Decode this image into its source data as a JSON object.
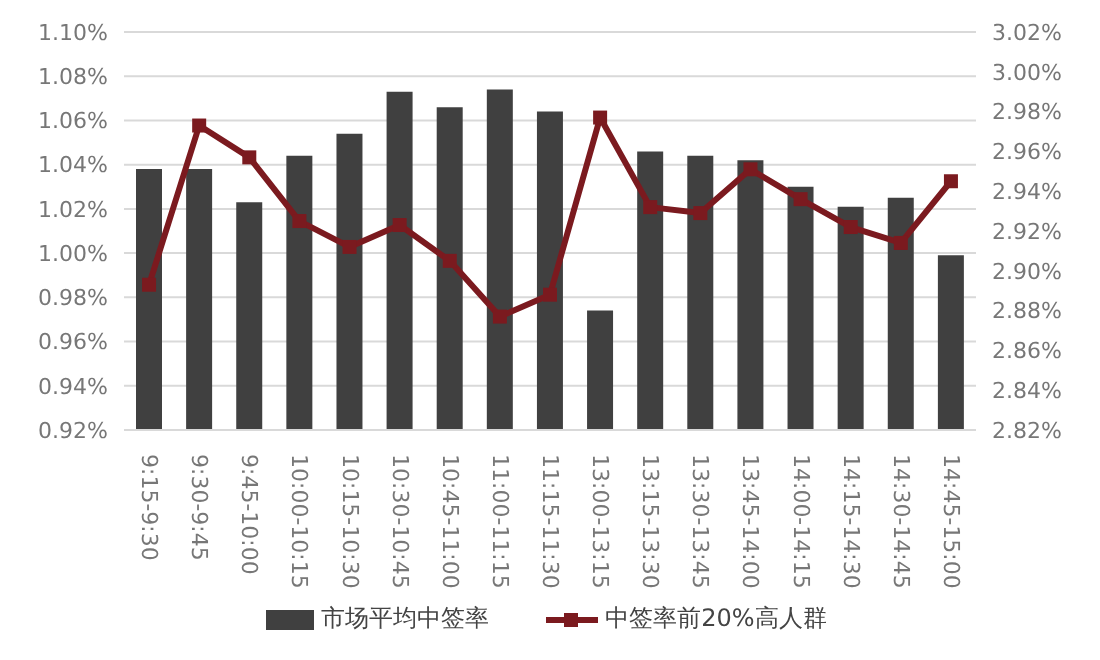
{
  "chart_data": {
    "type": "bar",
    "categories": [
      "9:15-9:30",
      "9:30-9:45",
      "9:45-10:00",
      "10:00-10:15",
      "10:15-10:30",
      "10:30-10:45",
      "10:45-11:00",
      "11:00-11:15",
      "11:15-11:30",
      "13:00-13:15",
      "13:15-13:30",
      "13:30-13:45",
      "13:45-14:00",
      "14:00-14:15",
      "14:15-14:30",
      "14:30-14:45",
      "14:45-15:00"
    ],
    "series": [
      {
        "name": "市场平均中签率",
        "color": "#404040",
        "values": [
          1.038,
          1.038,
          1.023,
          1.044,
          1.054,
          1.073,
          1.066,
          1.074,
          1.064,
          0.974,
          1.046,
          1.044,
          1.042,
          1.03,
          1.021,
          1.025,
          0.999
        ]
      },
      {
        "name": "中签率前20%高人群",
        "type": "line",
        "axis": "y2",
        "color": "#7b1a1f",
        "values": [
          2.893,
          2.973,
          2.957,
          2.925,
          2.912,
          2.923,
          2.905,
          2.877,
          2.888,
          2.977,
          2.932,
          2.929,
          2.951,
          2.936,
          2.922,
          2.914,
          2.945
        ]
      }
    ],
    "ylim": [
      0.92,
      1.1
    ],
    "yticks": [
      {
        "value": 0.92,
        "label": "0.92%"
      },
      {
        "value": 0.94,
        "label": "0.94%"
      },
      {
        "value": 0.96,
        "label": "0.96%"
      },
      {
        "value": 0.98,
        "label": "0.98%"
      },
      {
        "value": 1.0,
        "label": "1.00%"
      },
      {
        "value": 1.02,
        "label": "1.02%"
      },
      {
        "value": 1.04,
        "label": "1.04%"
      },
      {
        "value": 1.06,
        "label": "1.06%"
      },
      {
        "value": 1.08,
        "label": "1.08%"
      },
      {
        "value": 1.1,
        "label": "1.10%"
      }
    ],
    "y2lim": [
      2.82,
      3.02
    ],
    "y2ticks": [
      {
        "value": 2.82,
        "label": "2.82%"
      },
      {
        "value": 2.84,
        "label": "2.84%"
      },
      {
        "value": 2.86,
        "label": "2.86%"
      },
      {
        "value": 2.88,
        "label": "2.88%"
      },
      {
        "value": 2.9,
        "label": "2.90%"
      },
      {
        "value": 2.92,
        "label": "2.92%"
      },
      {
        "value": 2.94,
        "label": "2.94%"
      },
      {
        "value": 2.96,
        "label": "2.96%"
      },
      {
        "value": 2.98,
        "label": "2.98%"
      },
      {
        "value": 3.0,
        "label": "3.00%"
      },
      {
        "value": 3.02,
        "label": "3.02%"
      }
    ],
    "grid": "y",
    "legend": "bottom",
    "marker": "square"
  }
}
